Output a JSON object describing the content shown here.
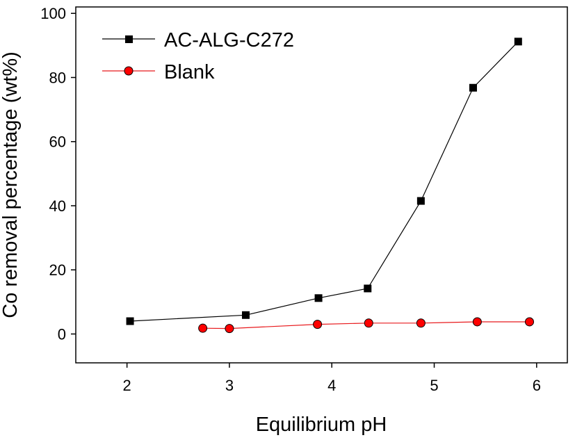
{
  "chart_data": {
    "type": "line",
    "title": "",
    "xlabel": "Equilibrium pH",
    "ylabel": "Co removal percentage (wt%)",
    "xlim": [
      1.5,
      6.3
    ],
    "ylim": [
      -9,
      102
    ],
    "xticks": [
      2,
      3,
      4,
      5,
      6
    ],
    "yticks": [
      0,
      20,
      40,
      60,
      80,
      100
    ],
    "xtick_labels": [
      "2",
      "3",
      "4",
      "5",
      "6"
    ],
    "ytick_labels": [
      "0",
      "20",
      "40",
      "60",
      "80",
      "100"
    ],
    "legend_position": "top-left",
    "grid": false,
    "series": [
      {
        "name": "AC-ALG-C272",
        "marker": "square",
        "line_color": "#000000",
        "marker_fill": "#000000",
        "x": [
          2.03,
          3.16,
          3.87,
          4.35,
          4.87,
          5.38,
          5.82
        ],
        "y": [
          4.0,
          5.9,
          11.2,
          14.2,
          41.5,
          76.8,
          91.2
        ]
      },
      {
        "name": "Blank",
        "marker": "circle",
        "line_color": "#e8191c",
        "marker_fill": "#ff0000",
        "x": [
          2.74,
          3.0,
          3.86,
          4.36,
          4.87,
          5.42,
          5.93
        ],
        "y": [
          1.8,
          1.7,
          3.0,
          3.4,
          3.4,
          3.8,
          3.8
        ]
      }
    ]
  }
}
